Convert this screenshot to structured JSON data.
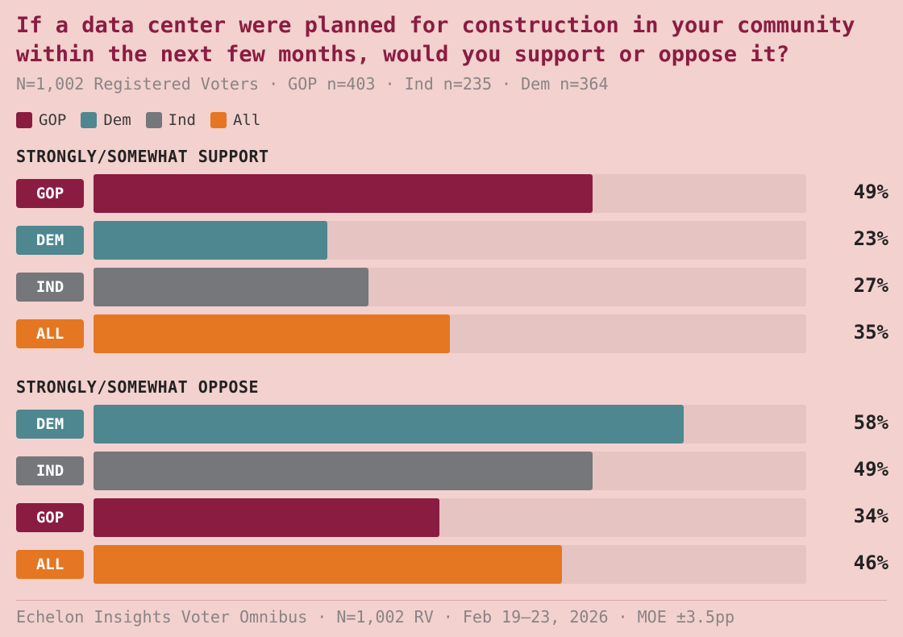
{
  "title": "If a data center were planned for construction in your community within the next few months, would you support or oppose it?",
  "subtitle": "N=1,002 Registered Voters · GOP n=403 · Ind n=235 · Dem n=364",
  "legend": [
    {
      "label": "GOP",
      "color": "#8a1c42"
    },
    {
      "label": "Dem",
      "color": "#4e8790"
    },
    {
      "label": "Ind",
      "color": "#75777a"
    },
    {
      "label": "All",
      "color": "#e57722"
    }
  ],
  "footer": "Echelon Insights Voter Omnibus · N=1,002 RV · Feb 19–23, 2026 · MOE ±3.5pp",
  "chart_data": {
    "type": "bar",
    "orientation": "horizontal",
    "title": "If a data center were planned for construction in your community within the next few months, would you support or oppose it?",
    "xlim": [
      0,
      70
    ],
    "unit": "%",
    "groups": [
      {
        "name": "STRONGLY/SOMEWHAT SUPPORT",
        "bars": [
          {
            "label": "GOP",
            "value": 49,
            "display": "49%",
            "color": "#8a1c42"
          },
          {
            "label": "DEM",
            "value": 23,
            "display": "23%",
            "color": "#4e8790"
          },
          {
            "label": "IND",
            "value": 27,
            "display": "27%",
            "color": "#75777a"
          },
          {
            "label": "ALL",
            "value": 35,
            "display": "35%",
            "color": "#e57722"
          }
        ]
      },
      {
        "name": "STRONGLY/SOMEWHAT OPPOSE",
        "bars": [
          {
            "label": "DEM",
            "value": 58,
            "display": "58%",
            "color": "#4e8790"
          },
          {
            "label": "IND",
            "value": 49,
            "display": "49%",
            "color": "#75777a"
          },
          {
            "label": "GOP",
            "value": 34,
            "display": "34%",
            "color": "#8a1c42"
          },
          {
            "label": "ALL",
            "value": 46,
            "display": "46%",
            "color": "#e57722"
          }
        ]
      }
    ]
  }
}
